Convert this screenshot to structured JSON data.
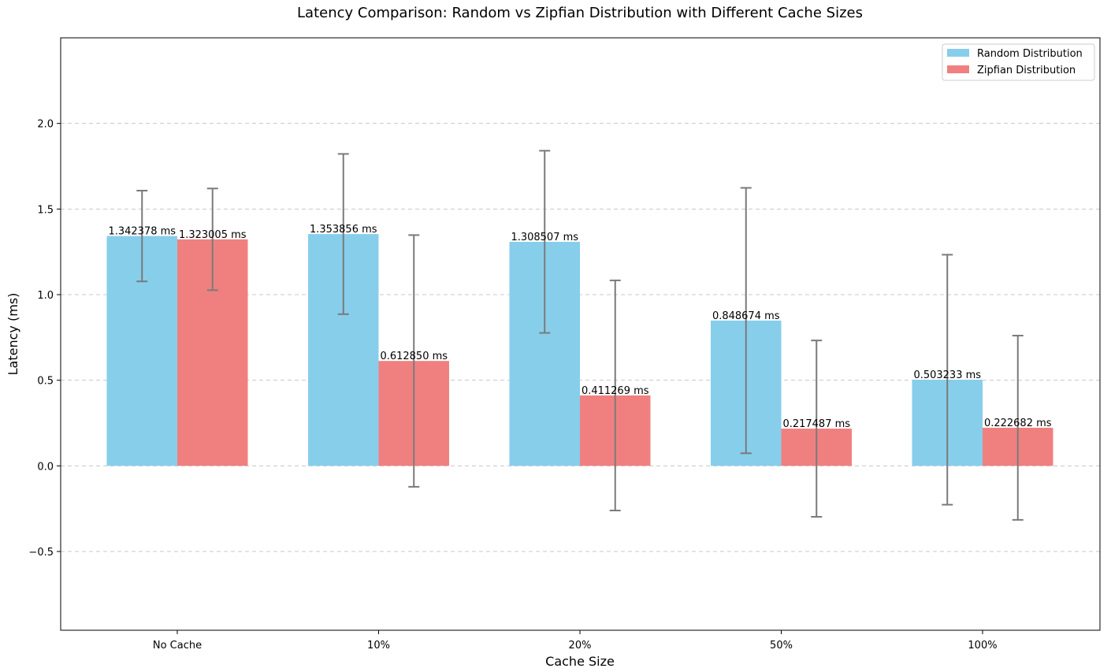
{
  "chart_data": {
    "type": "bar",
    "title": "Latency Comparison: Random vs Zipfian Distribution with Different Cache Sizes",
    "xlabel": "Cache Size",
    "ylabel": "Latency (ms)",
    "categories": [
      "No Cache",
      "10%",
      "20%",
      "50%",
      "100%"
    ],
    "ylim": [
      -0.96,
      2.5
    ],
    "yticks": [
      -0.5,
      0.0,
      0.5,
      1.0,
      1.5,
      2.0
    ],
    "ytick_labels": [
      "−0.5",
      "0.0",
      "0.5",
      "1.0",
      "1.5",
      "2.0"
    ],
    "grid": true,
    "legend_position": "top-right",
    "series": [
      {
        "name": "Random Distribution",
        "color": "#87CEEB",
        "values": [
          1.342378,
          1.353856,
          1.308507,
          0.848674,
          0.503233
        ],
        "labels": [
          "1.342378 ms",
          "1.353856 ms",
          "1.308507 ms",
          "0.848674 ms",
          "0.503233 ms"
        ],
        "error": [
          0.265,
          0.468,
          0.532,
          0.775,
          0.73
        ]
      },
      {
        "name": "Zipfian Distribution",
        "color": "#F08080",
        "values": [
          1.323005,
          0.61285,
          0.411269,
          0.217487,
          0.222682
        ],
        "labels": [
          "1.323005 ms",
          "0.612850 ms",
          "0.411269 ms",
          "0.217487 ms",
          "0.222682 ms"
        ],
        "error": [
          0.297,
          0.735,
          0.672,
          0.515,
          0.538
        ]
      }
    ]
  }
}
